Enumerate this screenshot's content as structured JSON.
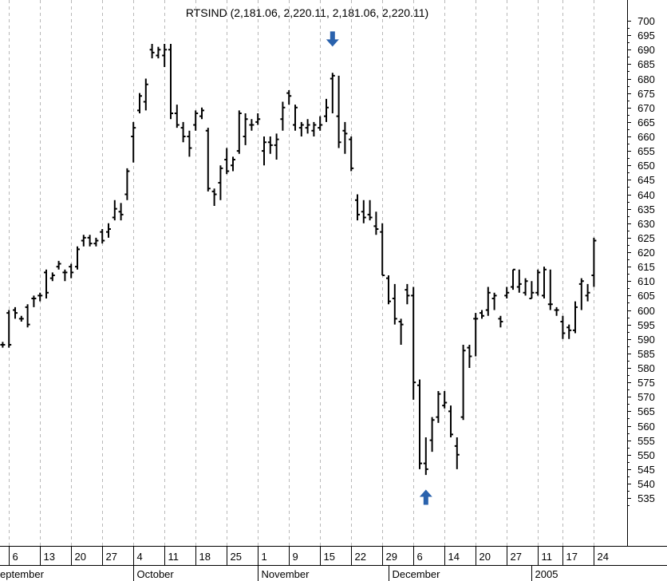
{
  "chart_data": {
    "type": "ohlc",
    "title": "RTSIND (2,181.06, 2,220.11, 2,181.06, 2,220.11)",
    "ylim": [
      530,
      702
    ],
    "y_ticks": [
      535,
      540,
      545,
      550,
      555,
      560,
      565,
      570,
      575,
      580,
      585,
      590,
      595,
      600,
      605,
      610,
      615,
      620,
      625,
      630,
      635,
      640,
      645,
      650,
      655,
      660,
      665,
      670,
      675,
      680,
      685,
      690,
      695,
      700
    ],
    "x_labels": [
      {
        "label": "6",
        "slot": 0
      },
      {
        "label": "13",
        "slot": 5
      },
      {
        "label": "20",
        "slot": 10
      },
      {
        "label": "27",
        "slot": 15
      },
      {
        "label": "4",
        "slot": 20
      },
      {
        "label": "11",
        "slot": 25
      },
      {
        "label": "18",
        "slot": 30
      },
      {
        "label": "25",
        "slot": 35
      },
      {
        "label": "1",
        "slot": 40
      },
      {
        "label": "9",
        "slot": 45
      },
      {
        "label": "15",
        "slot": 50
      },
      {
        "label": "22",
        "slot": 55
      },
      {
        "label": "29",
        "slot": 60
      },
      {
        "label": "6",
        "slot": 65
      },
      {
        "label": "14",
        "slot": 70
      },
      {
        "label": "20",
        "slot": 75
      },
      {
        "label": "27",
        "slot": 80
      },
      {
        "label": "11",
        "slot": 85
      },
      {
        "label": "17",
        "slot": 89
      },
      {
        "label": "24",
        "slot": 94
      }
    ],
    "month_labels": [
      {
        "label": "eptember",
        "slot": -1
      },
      {
        "label": "October",
        "slot": 20
      },
      {
        "label": "November",
        "slot": 40
      },
      {
        "label": "December",
        "slot": 61
      },
      {
        "label": "2005",
        "slot": 84
      }
    ],
    "markers": [
      {
        "type": "down-arrow",
        "slot": 52,
        "value": 693
      },
      {
        "type": "up-arrow",
        "slot": 67,
        "value": 536
      }
    ],
    "series": [
      {
        "bars": [
          [
            -1,
            588,
            589,
            587,
            588
          ],
          [
            0,
            599,
            600,
            587,
            588
          ],
          [
            1,
            600,
            601,
            597,
            599
          ],
          [
            2,
            597,
            598,
            596,
            597
          ],
          [
            3,
            601,
            602,
            594,
            595
          ],
          [
            4,
            604,
            605,
            601,
            604
          ],
          [
            5,
            605,
            606,
            603,
            605
          ],
          [
            6,
            613,
            614,
            604,
            606
          ],
          [
            7,
            611,
            613,
            610,
            612
          ],
          [
            8,
            615,
            617,
            614,
            616
          ],
          [
            9,
            613,
            614,
            610,
            613
          ],
          [
            10,
            615,
            616,
            611,
            613
          ],
          [
            11,
            615,
            622,
            614,
            621
          ],
          [
            12,
            624,
            626,
            622,
            625
          ],
          [
            13,
            625,
            626,
            622,
            623
          ],
          [
            14,
            623,
            625,
            622,
            624
          ],
          [
            15,
            627,
            628,
            623,
            624
          ],
          [
            16,
            627,
            630,
            625,
            628
          ],
          [
            17,
            632,
            638,
            631,
            635
          ],
          [
            18,
            634,
            637,
            631,
            633
          ],
          [
            19,
            640,
            649,
            638,
            648
          ],
          [
            20,
            660,
            665,
            651,
            663
          ],
          [
            21,
            669,
            675,
            668,
            674
          ],
          [
            22,
            672,
            680,
            669,
            678
          ],
          [
            23,
            690,
            692,
            687,
            689
          ],
          [
            24,
            688,
            691,
            687,
            690
          ],
          [
            25,
            688,
            692,
            684,
            690
          ],
          [
            26,
            690,
            692,
            666,
            668
          ],
          [
            27,
            668,
            671,
            663,
            664
          ],
          [
            28,
            663,
            665,
            658,
            660
          ],
          [
            29,
            660,
            662,
            653,
            656
          ],
          [
            30,
            664,
            669,
            662,
            668
          ],
          [
            31,
            667,
            670,
            666,
            669
          ],
          [
            32,
            662,
            663,
            641,
            642
          ],
          [
            33,
            641,
            642,
            636,
            640
          ],
          [
            34,
            644,
            650,
            638,
            649
          ],
          [
            35,
            652,
            656,
            647,
            648
          ],
          [
            36,
            650,
            653,
            648,
            652
          ],
          [
            37,
            655,
            669,
            654,
            668
          ],
          [
            38,
            660,
            668,
            657,
            666
          ],
          [
            39,
            664,
            666,
            662,
            664
          ],
          [
            40,
            665,
            668,
            664,
            666
          ],
          [
            41,
            655,
            660,
            650,
            658
          ],
          [
            42,
            658,
            660,
            654,
            657
          ],
          [
            43,
            657,
            661,
            652,
            659
          ],
          [
            44,
            666,
            672,
            662,
            670
          ],
          [
            45,
            675,
            676,
            671,
            674
          ],
          [
            46,
            664,
            671,
            662,
            670
          ],
          [
            47,
            663,
            665,
            660,
            664
          ],
          [
            48,
            663,
            666,
            661,
            664
          ],
          [
            49,
            662,
            665,
            660,
            664
          ],
          [
            50,
            663,
            667,
            662,
            664
          ],
          [
            51,
            667,
            673,
            665,
            670
          ],
          [
            52,
            680,
            682,
            668,
            681
          ],
          [
            53,
            667,
            681,
            656,
            658
          ],
          [
            54,
            662,
            665,
            654,
            661
          ],
          [
            55,
            659,
            660,
            648,
            649
          ],
          [
            56,
            638,
            640,
            631,
            633
          ],
          [
            57,
            634,
            638,
            630,
            632
          ],
          [
            58,
            633,
            638,
            631,
            632
          ],
          [
            59,
            629,
            634,
            626,
            628
          ],
          [
            60,
            627,
            630,
            612,
            612
          ],
          [
            61,
            611,
            612,
            602,
            603
          ],
          [
            62,
            604,
            609,
            595,
            597
          ],
          [
            63,
            596,
            597,
            588,
            595
          ],
          [
            64,
            607,
            609,
            602,
            605
          ],
          [
            65,
            605,
            608,
            569,
            575
          ],
          [
            66,
            574,
            576,
            545,
            547
          ],
          [
            67,
            547,
            556,
            543,
            545
          ],
          [
            68,
            555,
            563,
            551,
            562
          ],
          [
            69,
            563,
            572,
            561,
            571
          ],
          [
            70,
            567,
            572,
            566,
            568
          ],
          [
            71,
            565,
            567,
            556,
            557
          ],
          [
            72,
            553,
            556,
            545,
            550
          ],
          [
            73,
            563,
            588,
            562,
            586
          ],
          [
            74,
            587,
            588,
            580,
            584
          ],
          [
            75,
            597,
            599,
            584,
            597
          ],
          [
            76,
            599,
            600,
            597,
            598
          ],
          [
            77,
            600,
            608,
            598,
            606
          ],
          [
            78,
            604,
            606,
            600,
            605
          ],
          [
            79,
            597,
            598,
            594,
            596
          ],
          [
            80,
            605,
            608,
            604,
            606
          ],
          [
            81,
            608,
            614,
            607,
            614
          ],
          [
            82,
            608,
            614,
            606,
            609
          ],
          [
            83,
            606,
            611,
            605,
            610
          ],
          [
            84,
            604,
            610,
            604,
            606
          ],
          [
            85,
            606,
            614,
            605,
            613
          ],
          [
            86,
            605,
            615,
            604,
            614
          ],
          [
            87,
            602,
            614,
            600,
            602
          ],
          [
            88,
            600,
            601,
            598,
            600
          ],
          [
            89,
            596,
            598,
            590,
            592
          ],
          [
            90,
            594,
            595,
            590,
            593
          ],
          [
            91,
            593,
            603,
            592,
            601
          ],
          [
            92,
            609,
            611,
            600,
            610
          ],
          [
            93,
            605,
            609,
            603,
            606
          ],
          [
            94,
            612,
            625,
            608,
            624
          ]
        ]
      }
    ]
  }
}
